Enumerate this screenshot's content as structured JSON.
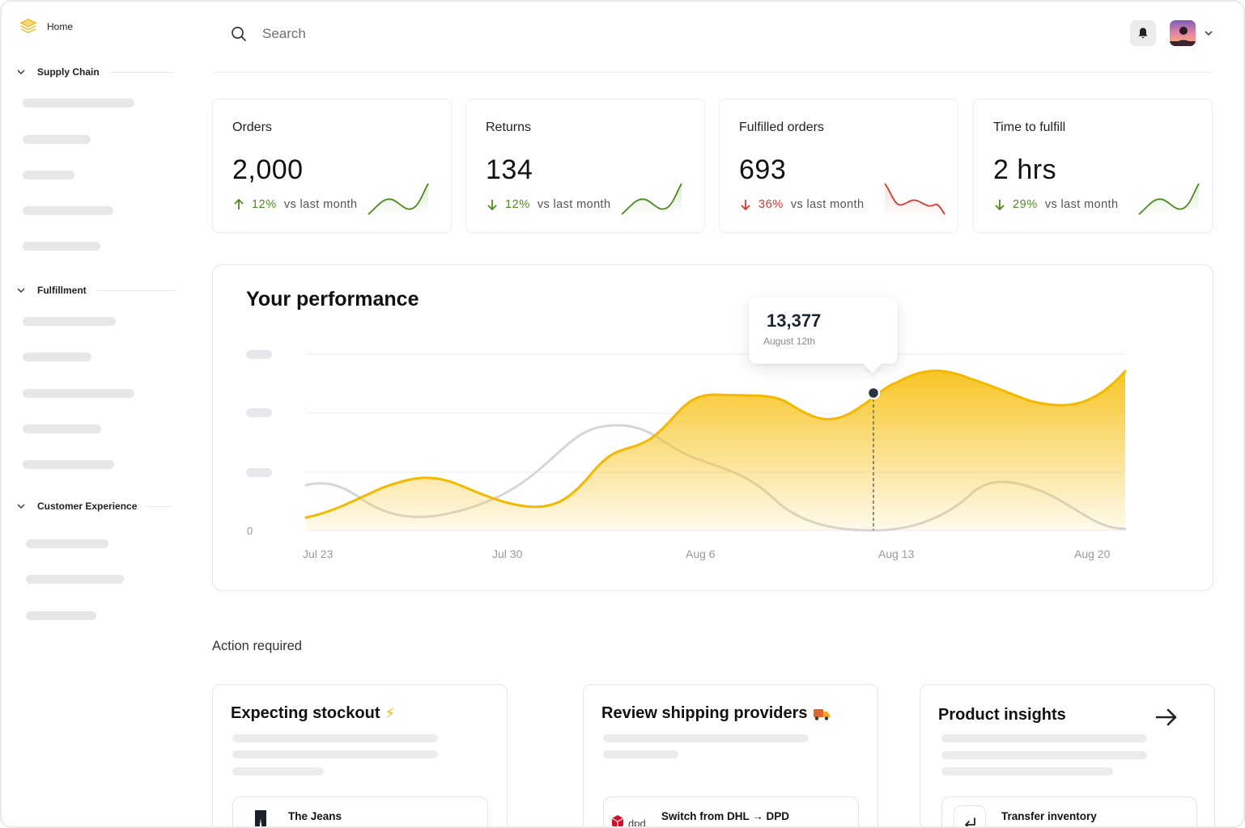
{
  "sidebar": {
    "home_label": "Home",
    "sections": [
      {
        "label": "Supply Chain"
      },
      {
        "label": "Fulfillment"
      },
      {
        "label": "Customer Experience"
      }
    ]
  },
  "header": {
    "search_placeholder": "Search",
    "notification_icon": "bell-icon",
    "avatar": "user-avatar"
  },
  "kpis": [
    {
      "label": "Orders",
      "value": "2,000",
      "pct": "12%",
      "vs": "vs last month",
      "direction": "up",
      "color": "#4c8a1e"
    },
    {
      "label": "Returns",
      "value": "134",
      "pct": "12%",
      "vs": "vs last month",
      "direction": "down",
      "color": "#4c8a1e"
    },
    {
      "label": "Fulfilled orders",
      "value": "693",
      "pct": "36%",
      "vs": "vs last month",
      "direction": "down",
      "color": "#d8382f"
    },
    {
      "label": "Time to fulfill",
      "value": "2 hrs",
      "pct": "29%",
      "vs": "vs last month",
      "direction": "down",
      "color": "#4c8a1e"
    }
  ],
  "performance": {
    "title": "Your performance",
    "tooltip": {
      "value": "13,377",
      "date": "August 12th"
    },
    "y_zero_label": "0",
    "x_labels": [
      "Jul 23",
      "Jul 30",
      "Aug 6",
      "Aug 13",
      "Aug 20"
    ],
    "colors": {
      "primary": "#f7c21a",
      "secondary": "#d6d6da"
    }
  },
  "actions": {
    "title": "Action required",
    "cards": [
      {
        "title": "Expecting stockout",
        "emoji": "⚡",
        "item": "The Jeans"
      },
      {
        "title": "Review shipping providers",
        "emoji": "🚚",
        "item": "Switch from DHL → DPD"
      },
      {
        "title": "Product insights",
        "emoji": "",
        "item": "Transfer inventory"
      }
    ]
  }
}
